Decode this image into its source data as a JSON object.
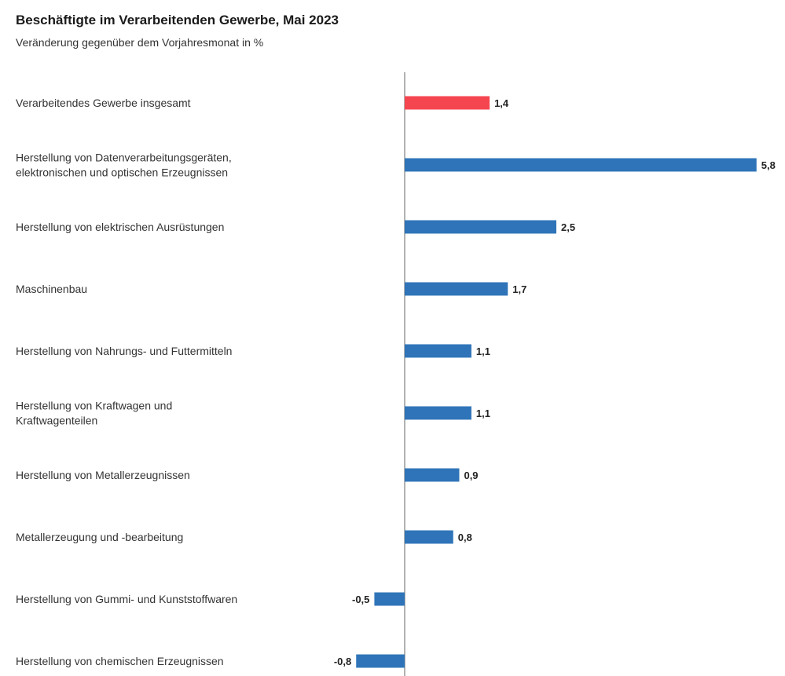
{
  "chart_data": {
    "type": "bar",
    "orientation": "horizontal",
    "title": "Beschäftigte im Verarbeitenden Gewerbe, Mai 2023",
    "subtitle": "Veränderung gegenüber dem Vorjahresmonat in %",
    "categories": [
      [
        "Verarbeitendes Gewerbe insgesamt"
      ],
      [
        "Herstellung von Datenverarbeitungsgeräten,",
        "elektronischen und optischen Erzeugnissen"
      ],
      [
        "Herstellung von elektrischen Ausrüstungen"
      ],
      [
        "Maschinenbau"
      ],
      [
        "Herstellung von Nahrungs- und Futtermitteln"
      ],
      [
        "Herstellung von Kraftwagen und",
        "Kraftwagenteilen"
      ],
      [
        "Herstellung von Metallerzeugnissen"
      ],
      [
        "Metallerzeugung und -bearbeitung"
      ],
      [
        "Herstellung von Gummi- und Kunststoffwaren"
      ],
      [
        "Herstellung von chemischen Erzeugnissen"
      ]
    ],
    "values": [
      1.4,
      5.8,
      2.5,
      1.7,
      1.1,
      1.1,
      0.9,
      0.8,
      -0.5,
      -0.8
    ],
    "value_labels": [
      "1,4",
      "5,8",
      "2,5",
      "1,7",
      "1,1",
      "1,1",
      "0,9",
      "0,8",
      "-0,5",
      "-0,8"
    ],
    "highlight_index": 0,
    "colors": {
      "highlight": "#f5454f",
      "default": "#2f74b8",
      "zero_line": "#999999"
    },
    "grid": false,
    "legend": "none"
  }
}
